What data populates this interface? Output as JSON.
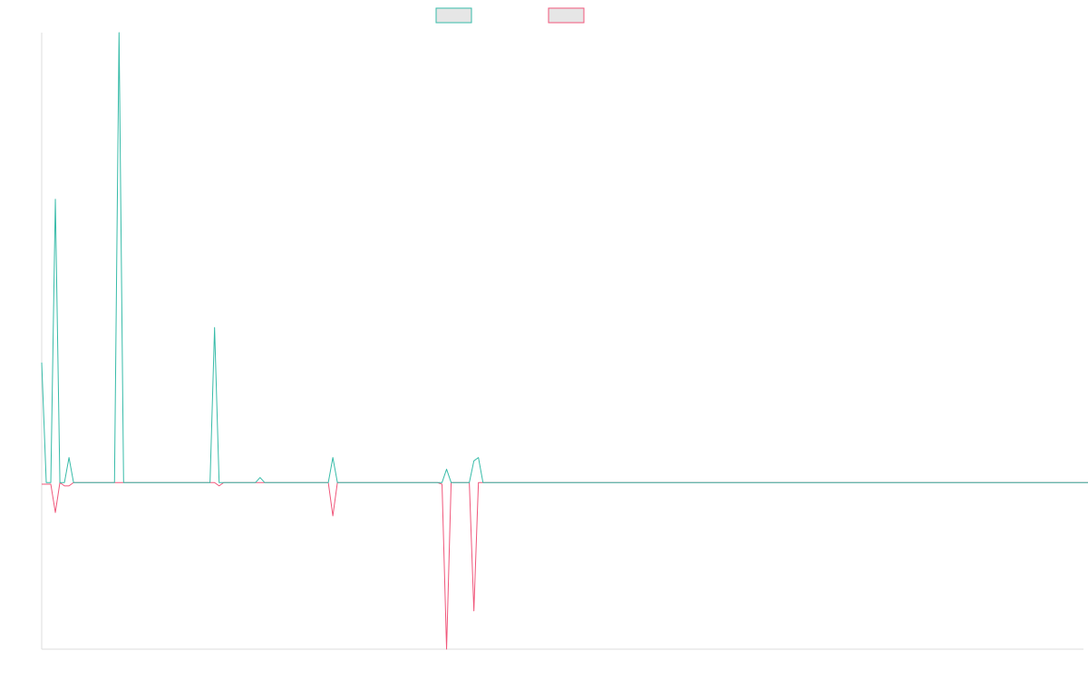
{
  "chart_data": {
    "type": "line",
    "title": "",
    "xlabel": "",
    "ylabel": "",
    "x_range": [
      0,
      229
    ],
    "ylim": [
      -1.0,
      2.7
    ],
    "grid": false,
    "legend_position": "top-center",
    "series": [
      {
        "color": "#36bba8",
        "values": [
          0.72,
          0.0,
          0.0,
          1.7,
          0.0,
          0.0,
          0.15,
          0.0,
          0.0,
          0.0,
          0.0,
          0.0,
          0.0,
          0.0,
          0.0,
          0.0,
          0.0,
          2.7,
          0.0,
          0.0,
          0.0,
          0.0,
          0.0,
          0.0,
          0.0,
          0.0,
          0.0,
          0.0,
          0.0,
          0.0,
          0.0,
          0.0,
          0.0,
          0.0,
          0.0,
          0.0,
          0.0,
          0.0,
          0.93,
          0.0,
          0.0,
          0.0,
          0.0,
          0.0,
          0.0,
          0.0,
          0.0,
          0.0,
          0.03,
          0.0,
          0.0,
          0.0,
          0.0,
          0.0,
          0.0,
          0.0,
          0.0,
          0.0,
          0.0,
          0.0,
          0.0,
          0.0,
          0.0,
          0.0,
          0.15,
          0.0,
          0.0,
          0.0,
          0.0,
          0.0,
          0.0,
          0.0,
          0.0,
          0.0,
          0.0,
          0.0,
          0.0,
          0.0,
          0.0,
          0.0,
          0.0,
          0.0,
          0.0,
          0.0,
          0.0,
          0.0,
          0.0,
          0.0,
          0.0,
          0.08,
          0.0,
          0.0,
          0.0,
          0.0,
          0.0,
          0.13,
          0.15,
          0.0,
          0.0,
          0.0,
          0.0,
          0.0,
          0.0,
          0.0,
          0.0,
          0.0,
          0.0,
          0.0,
          0.0,
          0.0,
          0.0,
          0.0,
          0.0,
          0.0,
          0.0,
          0.0,
          0.0,
          0.0,
          0.0,
          0.0,
          0.0,
          0.0,
          0.0,
          0.0,
          0.0,
          0.0,
          0.0,
          0.0,
          0.0,
          0.0,
          0.0,
          0.0,
          0.0,
          0.0,
          0.0,
          0.0,
          0.0,
          0.0,
          0.0,
          0.0,
          0.0,
          0.0,
          0.0,
          0.0,
          0.0,
          0.0,
          0.0,
          0.0,
          0.0,
          0.0,
          0.0,
          0.0,
          0.0,
          0.0,
          0.0,
          0.0,
          0.0,
          0.0,
          0.0,
          0.0,
          0.0,
          0.0,
          0.0,
          0.0,
          0.0,
          0.0,
          0.0,
          0.0,
          0.0,
          0.0,
          0.0,
          0.0,
          0.0,
          0.0,
          0.0,
          0.0,
          0.0,
          0.0,
          0.0,
          0.0,
          0.0,
          0.0,
          0.0,
          0.0,
          0.0,
          0.0,
          0.0,
          0.0,
          0.0,
          0.0,
          0.0,
          0.0,
          0.0,
          0.0,
          0.0,
          0.0,
          0.0,
          0.0,
          0.0,
          0.0,
          0.0,
          0.0,
          0.0,
          0.0,
          0.0,
          0.0,
          0.0,
          0.0,
          0.0,
          0.0,
          0.0,
          0.0,
          0.0,
          0.0,
          0.0,
          0.0,
          0.0,
          0.0,
          0.0,
          0.0,
          0.0,
          0.0,
          0.0,
          0.0,
          0.0,
          0.0,
          0.0,
          0.0,
          0.0,
          0.0,
          0.0
        ]
      },
      {
        "color": "#f0567a",
        "values": [
          -0.01,
          -0.01,
          -0.01,
          -0.18,
          0.0,
          -0.02,
          -0.02,
          0.0,
          0.0,
          0.0,
          0.0,
          0.0,
          0.0,
          0.0,
          0.0,
          0.0,
          0.0,
          0.0,
          0.0,
          0.0,
          0.0,
          0.0,
          0.0,
          0.0,
          0.0,
          0.0,
          0.0,
          0.0,
          0.0,
          0.0,
          0.0,
          0.0,
          0.0,
          0.0,
          0.0,
          0.0,
          0.0,
          0.0,
          0.0,
          -0.02,
          0.0,
          0.0,
          0.0,
          0.0,
          0.0,
          0.0,
          0.0,
          0.0,
          0.0,
          0.0,
          0.0,
          0.0,
          0.0,
          0.0,
          0.0,
          0.0,
          0.0,
          0.0,
          0.0,
          0.0,
          0.0,
          0.0,
          0.0,
          0.0,
          -0.2,
          0.0,
          0.0,
          0.0,
          0.0,
          0.0,
          0.0,
          0.0,
          0.0,
          0.0,
          0.0,
          0.0,
          0.0,
          0.0,
          0.0,
          0.0,
          0.0,
          0.0,
          0.0,
          0.0,
          0.0,
          0.0,
          0.0,
          0.0,
          -0.01,
          -1.0,
          0.0,
          0.0,
          0.0,
          0.0,
          0.0,
          -0.77,
          0.0,
          0.0,
          0.0,
          0.0,
          0.0,
          0.0,
          0.0,
          0.0,
          0.0,
          0.0,
          0.0,
          0.0,
          0.0,
          0.0,
          0.0,
          0.0,
          0.0,
          0.0,
          0.0,
          0.0,
          0.0,
          0.0,
          0.0,
          0.0,
          0.0,
          0.0,
          0.0,
          0.0,
          0.0,
          0.0,
          0.0,
          0.0,
          0.0,
          0.0,
          0.0,
          0.0,
          0.0,
          0.0,
          0.0,
          0.0,
          0.0,
          0.0,
          0.0,
          0.0,
          0.0,
          0.0,
          0.0,
          0.0,
          0.0,
          0.0,
          0.0,
          0.0,
          0.0,
          0.0,
          0.0,
          0.0,
          0.0,
          0.0,
          0.0,
          0.0,
          0.0,
          0.0,
          0.0,
          0.0,
          0.0,
          0.0,
          0.0,
          0.0,
          0.0,
          0.0,
          0.0,
          0.0,
          0.0,
          0.0,
          0.0,
          0.0,
          0.0,
          0.0,
          0.0,
          0.0,
          0.0,
          0.0,
          0.0,
          0.0,
          0.0,
          0.0,
          0.0,
          0.0,
          0.0,
          0.0,
          0.0,
          0.0,
          0.0,
          0.0,
          0.0,
          0.0,
          0.0,
          0.0,
          0.0,
          0.0,
          0.0,
          0.0,
          0.0,
          0.0,
          0.0,
          0.0,
          0.0,
          0.0,
          0.0,
          0.0,
          0.0,
          0.0,
          0.0,
          0.0,
          0.0,
          0.0,
          0.0,
          0.0,
          0.0,
          0.0,
          0.0,
          0.0,
          0.0,
          0.0,
          0.0,
          0.0,
          0.0,
          0.0,
          0.0,
          0.0,
          0.0,
          0.0,
          0.0,
          0.0,
          0.0,
          0.0
        ]
      }
    ]
  }
}
